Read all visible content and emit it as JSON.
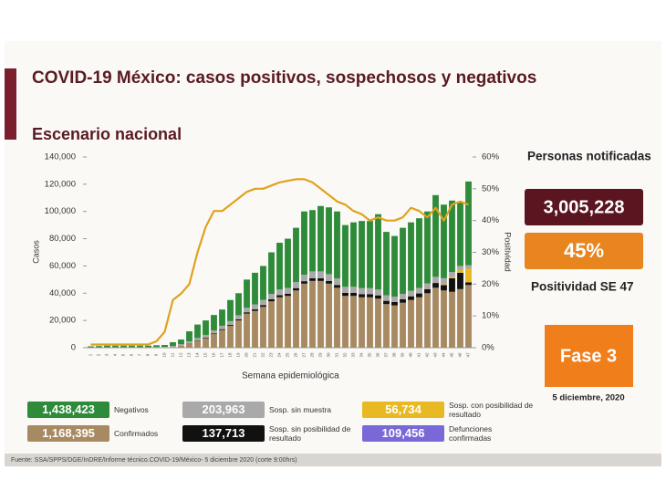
{
  "title": "COVID-19 México: casos positivos, sospechosos y negativos",
  "subtitle": "Escenario nacional",
  "panel": {
    "notified_label": "Personas notificadas",
    "notified_value": "3,005,228",
    "positivity_value": "45%",
    "positivity_label": "Positividad SE 47",
    "phase": "Fase 3",
    "date": "5 diciembre, 2020"
  },
  "extra_box": {
    "label": "Defunciones confirmadas",
    "total": "109,456",
    "color": "#7b68d8"
  },
  "source": "Fuente: SSA/SPPS/DGE/InDRE/Informe técnico.COVID-19/México- 5 diciembre 2020 (corte 9:00hrs)",
  "chart_data": {
    "type": "bar",
    "stacked": true,
    "xlabel": "Semana epidemiológica",
    "ylabel": "Casos",
    "y2label": "Positividad",
    "categories": [
      "1",
      "2",
      "3",
      "4",
      "5",
      "6",
      "7",
      "8",
      "9",
      "10",
      "11",
      "12",
      "13",
      "14",
      "15",
      "16",
      "17",
      "18",
      "19",
      "20",
      "21",
      "22",
      "23",
      "24",
      "25",
      "26",
      "27",
      "28",
      "29",
      "30",
      "31",
      "32",
      "33",
      "34",
      "35",
      "36",
      "37",
      "38",
      "39",
      "40",
      "41",
      "42",
      "43",
      "44",
      "45",
      "46",
      "47"
    ],
    "ylim": [
      0,
      140000
    ],
    "yticks": [
      0,
      {
        "value": 20000,
        "label": "20,000"
      },
      {
        "value": 40000,
        "label": "40,000"
      },
      {
        "value": 60000,
        "label": "60,000"
      },
      {
        "value": 80000,
        "label": "80,000"
      },
      {
        "value": 100000,
        "label": "100,000"
      },
      {
        "value": 120000,
        "label": "120,000"
      },
      {
        "value": 140000,
        "label": "140,000"
      }
    ],
    "y2lim": [
      0,
      60
    ],
    "y2ticks": [
      {
        "value": 0,
        "label": "0%"
      },
      {
        "value": 10,
        "label": "10%"
      },
      {
        "value": 20,
        "label": "20%"
      },
      {
        "value": 30,
        "label": "30%"
      },
      {
        "value": 40,
        "label": "40%"
      },
      {
        "value": 50,
        "label": "50%"
      },
      {
        "value": 60,
        "label": "60%"
      }
    ],
    "series": [
      {
        "name": "Confirmados",
        "total": "1,168,395",
        "color": "#a88a62",
        "values": [
          0,
          0,
          0,
          0,
          0,
          0,
          0,
          0,
          10,
          100,
          500,
          1500,
          3000,
          5000,
          7000,
          10000,
          13000,
          16000,
          20000,
          25000,
          27000,
          30000,
          34000,
          37000,
          38000,
          42000,
          47000,
          49000,
          49000,
          47000,
          44000,
          38000,
          38000,
          37000,
          37000,
          36000,
          32000,
          31000,
          33000,
          35000,
          37000,
          40000,
          44000,
          42000,
          41000,
          43000,
          46000
        ]
      },
      {
        "name": "Sosp. sin posibilidad de resultado",
        "total": "137,713",
        "color": "#111111",
        "values": [
          0,
          0,
          0,
          0,
          0,
          0,
          0,
          0,
          0,
          0,
          0,
          0,
          200,
          300,
          400,
          500,
          600,
          700,
          800,
          1000,
          1200,
          1300,
          1500,
          1500,
          1600,
          1700,
          1800,
          2000,
          2000,
          2000,
          2000,
          2200,
          2200,
          2300,
          2300,
          2400,
          2400,
          2500,
          2600,
          2700,
          2800,
          3000,
          3500,
          4000,
          10000,
          12000,
          2000
        ]
      },
      {
        "name": "Sosp. con posibilidad de resultado",
        "total": "56,734",
        "color": "#e8b923",
        "values": [
          0,
          0,
          0,
          0,
          0,
          0,
          0,
          0,
          0,
          0,
          0,
          0,
          0,
          0,
          0,
          0,
          0,
          0,
          0,
          0,
          0,
          0,
          0,
          0,
          0,
          0,
          0,
          0,
          0,
          0,
          0,
          0,
          0,
          0,
          0,
          0,
          0,
          0,
          0,
          0,
          0,
          0,
          0,
          500,
          1000,
          2000,
          10000
        ]
      },
      {
        "name": "Sosp. sin muestra",
        "total": "203,963",
        "color": "#a9a9a9",
        "values": [
          200,
          200,
          300,
          300,
          300,
          300,
          300,
          300,
          400,
          500,
          700,
          1000,
          1500,
          1800,
          2000,
          2200,
          2500,
          2800,
          3000,
          3300,
          3500,
          3800,
          4000,
          4200,
          4300,
          4500,
          4800,
          5000,
          5000,
          5000,
          4800,
          4500,
          4500,
          4400,
          4400,
          4300,
          4000,
          3900,
          3900,
          4000,
          4000,
          4200,
          4500,
          4500,
          3500,
          3000,
          2500
        ]
      },
      {
        "name": "Negativos",
        "total": "1,438,423",
        "color": "#2e8b3a",
        "values": [
          800,
          1000,
          1200,
          1200,
          1200,
          1200,
          1200,
          1200,
          1390,
          1400,
          2800,
          3500,
          7300,
          9900,
          10600,
          11300,
          11900,
          15500,
          16200,
          20700,
          23300,
          24900,
          30500,
          34300,
          36100,
          39800,
          46400,
          45000,
          48000,
          49000,
          49200,
          45300,
          47300,
          49300,
          49300,
          55300,
          46600,
          44600,
          48500,
          50300,
          51200,
          52800,
          60000,
          54000,
          52500,
          47000,
          61500
        ]
      },
      {
        "type": "line",
        "axis": "y2",
        "color": "#e0a21e",
        "values": [
          1,
          1,
          1,
          1,
          1,
          1,
          1,
          1,
          2,
          5,
          15,
          17,
          20,
          30,
          38,
          43,
          43,
          45,
          47,
          49,
          50,
          50,
          51,
          52,
          52.5,
          53,
          53,
          52,
          50,
          48,
          46,
          45,
          43,
          42,
          40,
          41,
          40,
          40,
          41,
          44,
          43,
          41,
          44,
          40,
          45,
          46,
          45
        ]
      }
    ]
  }
}
